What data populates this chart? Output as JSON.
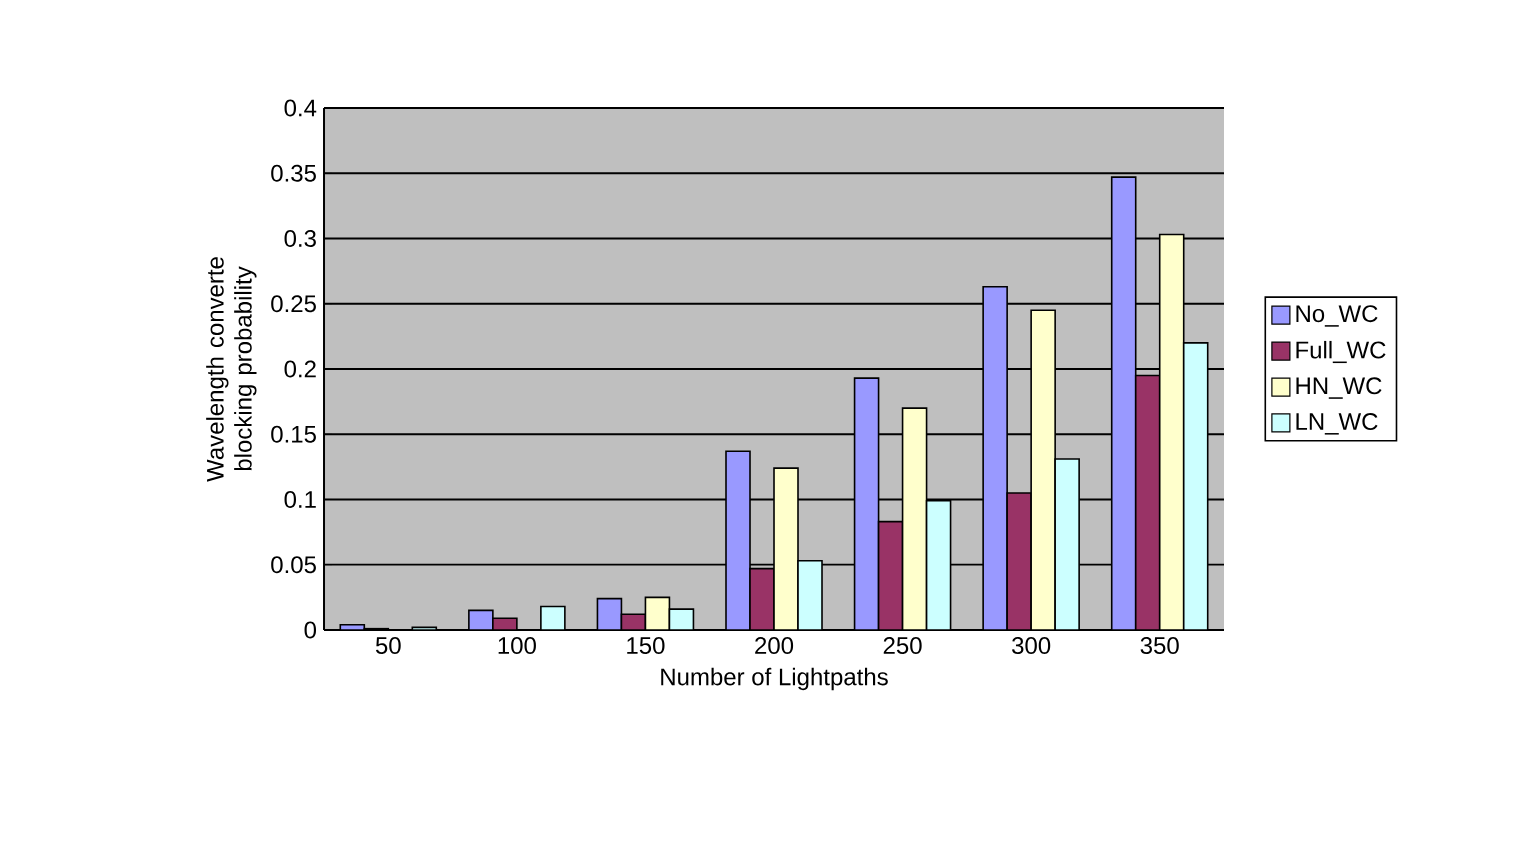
{
  "chart_data": {
    "type": "bar",
    "xlabel": "Number of Lightpaths",
    "ylabel": "Wavelength converte blocking  probability",
    "categories": [
      "50",
      "100",
      "150",
      "200",
      "250",
      "300",
      "350"
    ],
    "series": [
      {
        "name": "No_WC",
        "color": "#9999ff",
        "values": [
          0.004,
          0.015,
          0.024,
          0.137,
          0.193,
          0.263,
          0.347
        ]
      },
      {
        "name": "Full_WC",
        "color": "#993366",
        "values": [
          0.001,
          0.009,
          0.012,
          0.047,
          0.083,
          0.105,
          0.195
        ]
      },
      {
        "name": "HN_WC",
        "color": "#ffffcc",
        "values": [
          null,
          null,
          0.025,
          0.124,
          0.17,
          0.245,
          0.303
        ]
      },
      {
        "name": "LN_WC",
        "color": "#ccffff",
        "values": [
          0.002,
          0.018,
          0.016,
          0.053,
          0.099,
          0.131,
          0.22
        ]
      }
    ],
    "ylim": [
      0,
      0.4
    ],
    "yticks": [
      0,
      0.05,
      0.1,
      0.15,
      0.2,
      0.25,
      0.3,
      0.35,
      0.4
    ],
    "grid": "y",
    "legend": "right"
  }
}
